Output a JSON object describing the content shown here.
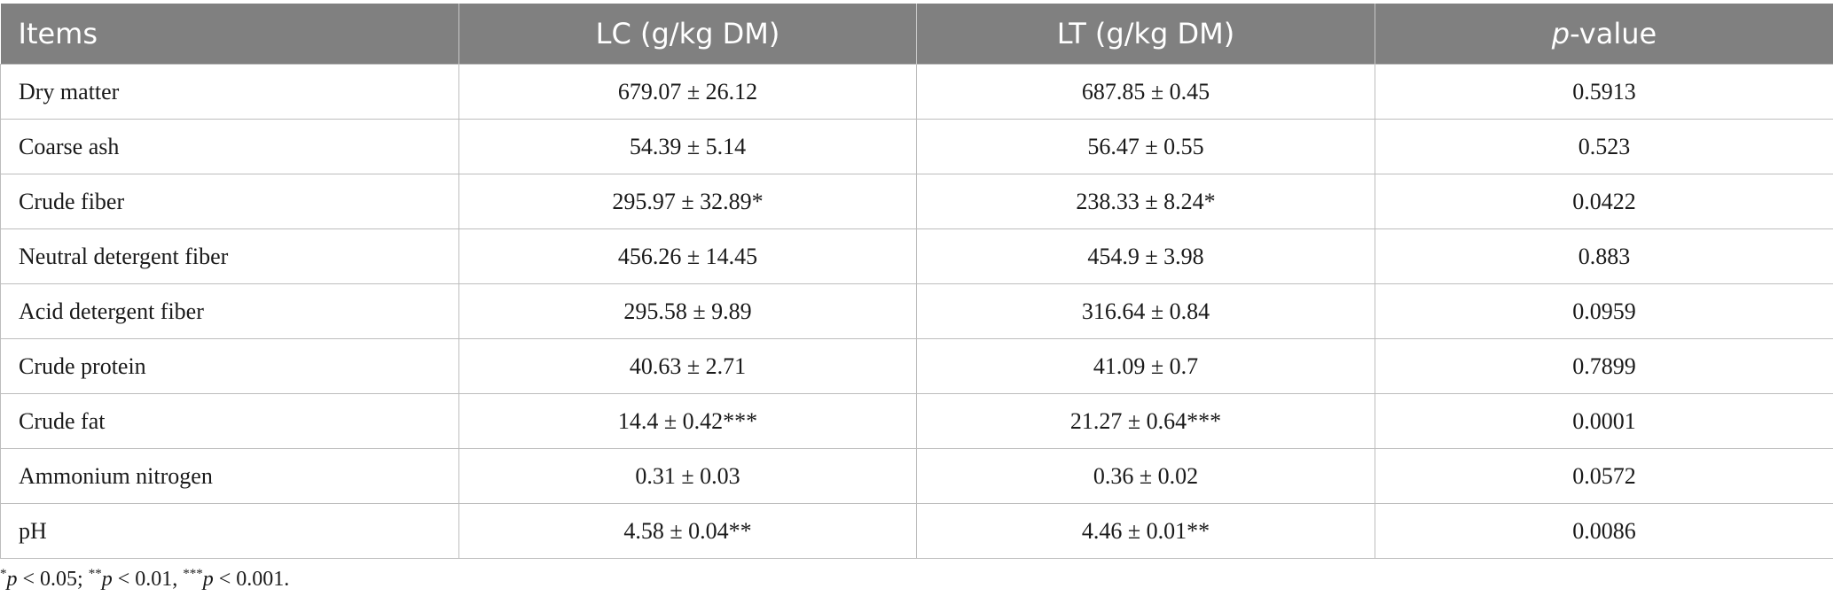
{
  "table": {
    "headers": {
      "items": "Items",
      "lc": "LC (g/kg DM)",
      "lt": "LT (g/kg DM)",
      "pvalue_italic": "p",
      "pvalue_rest": "-value"
    },
    "rows": [
      {
        "item": "Dry matter",
        "lc": "679.07 ± 26.12",
        "lt": "687.85 ± 0.45",
        "p": "0.5913"
      },
      {
        "item": "Coarse ash",
        "lc": "54.39 ± 5.14",
        "lt": "56.47 ± 0.55",
        "p": "0.523"
      },
      {
        "item": "Crude fiber",
        "lc": "295.97 ± 32.89*",
        "lt": "238.33 ± 8.24*",
        "p": "0.0422"
      },
      {
        "item": "Neutral detergent fiber",
        "lc": "456.26 ± 14.45",
        "lt": "454.9 ± 3.98",
        "p": "0.883"
      },
      {
        "item": "Acid detergent fiber",
        "lc": "295.58 ± 9.89",
        "lt": "316.64 ± 0.84",
        "p": "0.0959"
      },
      {
        "item": "Crude protein",
        "lc": "40.63 ± 2.71",
        "lt": "41.09 ± 0.7",
        "p": "0.7899"
      },
      {
        "item": "Crude fat",
        "lc": "14.4 ± 0.42***",
        "lt": "21.27 ± 0.64***",
        "p": "0.0001"
      },
      {
        "item": "Ammonium nitrogen",
        "lc": "0.31 ± 0.03",
        "lt": "0.36 ± 0.02",
        "p": "0.0572"
      },
      {
        "item": "pH",
        "lc": "4.58 ± 0.04**",
        "lt": "4.46 ± 0.01**",
        "p": "0.0086"
      }
    ]
  },
  "footnote": {
    "s1": "*",
    "p1": "p",
    "t1": " < 0.05; ",
    "s2": "**",
    "p2": "p",
    "t2": " < 0.01, ",
    "s3": "***",
    "p3": "p",
    "t3": " < 0.001."
  }
}
